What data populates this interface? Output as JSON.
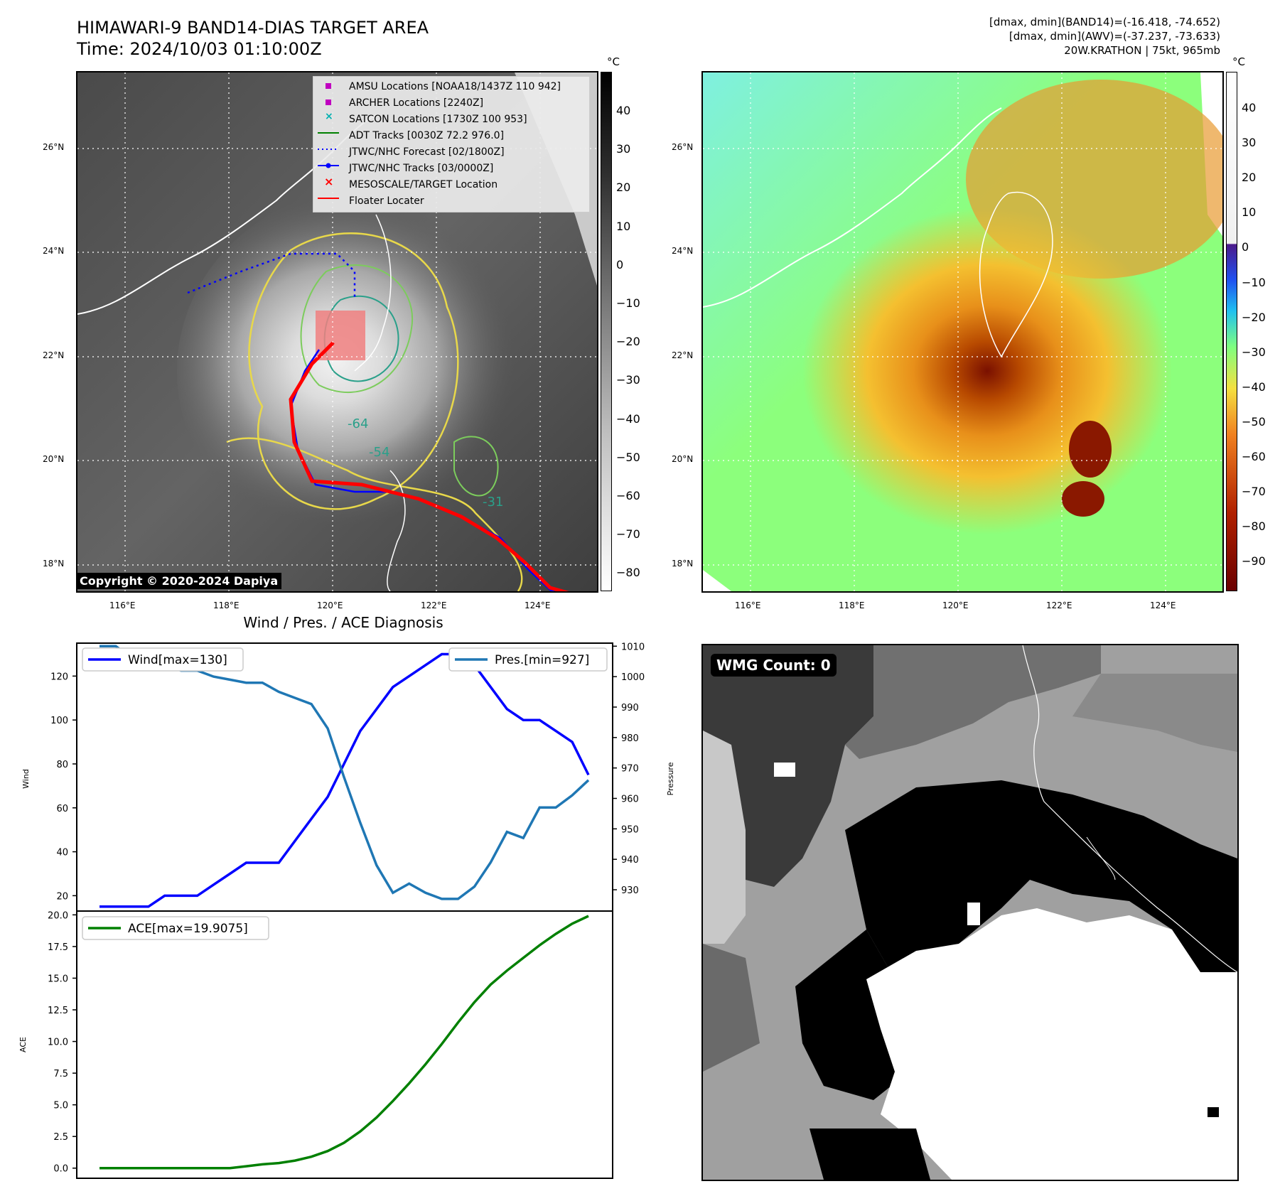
{
  "header": {
    "title_line1": "HIMAWARI-9 BAND14-DIAS TARGET AREA",
    "title_line2": "Time: 2024/10/03 01:10:00Z",
    "info_line1": "[dmax, dmin](BAND14)=(-16.418, -74.652)",
    "info_line2": "[dmax, dmin](AWV)=(-37.237, -73.633)",
    "info_line3": "20W.KRATHON | 75kt, 965mb"
  },
  "map": {
    "lat_labels": [
      "26°N",
      "24°N",
      "22°N",
      "20°N",
      "18°N"
    ],
    "lon_labels": [
      "116°E",
      "118°E",
      "120°E",
      "122°E",
      "124°E"
    ],
    "copyright": "Copyright © 2020-2024 Dapiya",
    "contour_labels": [
      "-64",
      "-54",
      "-31"
    ],
    "legend": [
      {
        "label": "AMSU Locations [NOAA18/1437Z 110 942]",
        "color": "#c000c0"
      },
      {
        "label": "ARCHER Locations [2240Z]",
        "color": "#c000c0"
      },
      {
        "label": "SATCON Locations [1730Z 100 953]",
        "color": "#00b0b0"
      },
      {
        "label": "ADT Tracks [0030Z 72.2 976.0]",
        "color": "#008000"
      },
      {
        "label": "JTWC/NHC Forecast [02/1800Z]",
        "color": "#0000ff"
      },
      {
        "label": "JTWC/NHC Tracks [03/0000Z]",
        "color": "#0000ff"
      },
      {
        "label": "MESOSCALE/TARGET Location",
        "color": "#ff0000"
      },
      {
        "label": "Floater Locater",
        "color": "#ff0000"
      }
    ]
  },
  "colorbar_gray": {
    "unit": "°C",
    "ticks": [
      "40",
      "30",
      "20",
      "10",
      "0",
      "−10",
      "−20",
      "−30",
      "−40",
      "−50",
      "−60",
      "−70",
      "−80"
    ]
  },
  "colorbar_color": {
    "unit": "°C",
    "ticks": [
      "40",
      "30",
      "20",
      "10",
      "0",
      "−10",
      "−20",
      "−30",
      "−40",
      "−50",
      "−60",
      "−70",
      "−80",
      "−90"
    ]
  },
  "wmg": {
    "label": "WMG Count: 0"
  },
  "chart_data": [
    {
      "type": "line",
      "title": "Wind / Pres. / ACE Diagnosis",
      "ylabel": "Wind",
      "ylabel_right": "Pressure",
      "ylim": [
        13,
        135
      ],
      "ylim_right": [
        923,
        1011
      ],
      "yticks": [
        "120",
        "100",
        "80",
        "60",
        "40",
        "20"
      ],
      "yticks_right": [
        "1010",
        "1000",
        "990",
        "980",
        "970",
        "960",
        "950",
        "940",
        "930"
      ],
      "series": [
        {
          "name": "Wind",
          "legend": "Wind[max=130]",
          "color": "#0000ff",
          "values": [
            15,
            15,
            15,
            15,
            20,
            20,
            20,
            25,
            30,
            35,
            35,
            35,
            45,
            55,
            65,
            80,
            95,
            105,
            115,
            120,
            125,
            130,
            130,
            125,
            115,
            105,
            100,
            100,
            95,
            90,
            75
          ]
        },
        {
          "name": "Pres.",
          "legend": "Pres.[min=927]",
          "color": "#1f77b4",
          "values": [
            1010,
            1010,
            1006,
            1004,
            1004,
            1002,
            1002,
            1000,
            999,
            998,
            998,
            995,
            993,
            991,
            983,
            967,
            952,
            938,
            929,
            932,
            929,
            927,
            927,
            931,
            939,
            949,
            947,
            957,
            957,
            961,
            966
          ]
        }
      ]
    },
    {
      "type": "line",
      "ylabel": "ACE",
      "ylim": [
        -0.8,
        20.3
      ],
      "yticks": [
        "20.0",
        "17.5",
        "15.0",
        "12.5",
        "10.0",
        "7.5",
        "5.0",
        "2.5",
        "0.0"
      ],
      "series": [
        {
          "name": "ACE",
          "legend": "ACE[max=19.9075]",
          "color": "#008000",
          "values": [
            0,
            0,
            0,
            0,
            0,
            0,
            0,
            0,
            0,
            0.15,
            0.3,
            0.4,
            0.6,
            0.9,
            1.35,
            2.0,
            2.9,
            4.0,
            5.3,
            6.7,
            8.2,
            9.8,
            11.5,
            13.1,
            14.5,
            15.6,
            16.6,
            17.6,
            18.5,
            19.3,
            19.9075
          ]
        }
      ]
    }
  ]
}
